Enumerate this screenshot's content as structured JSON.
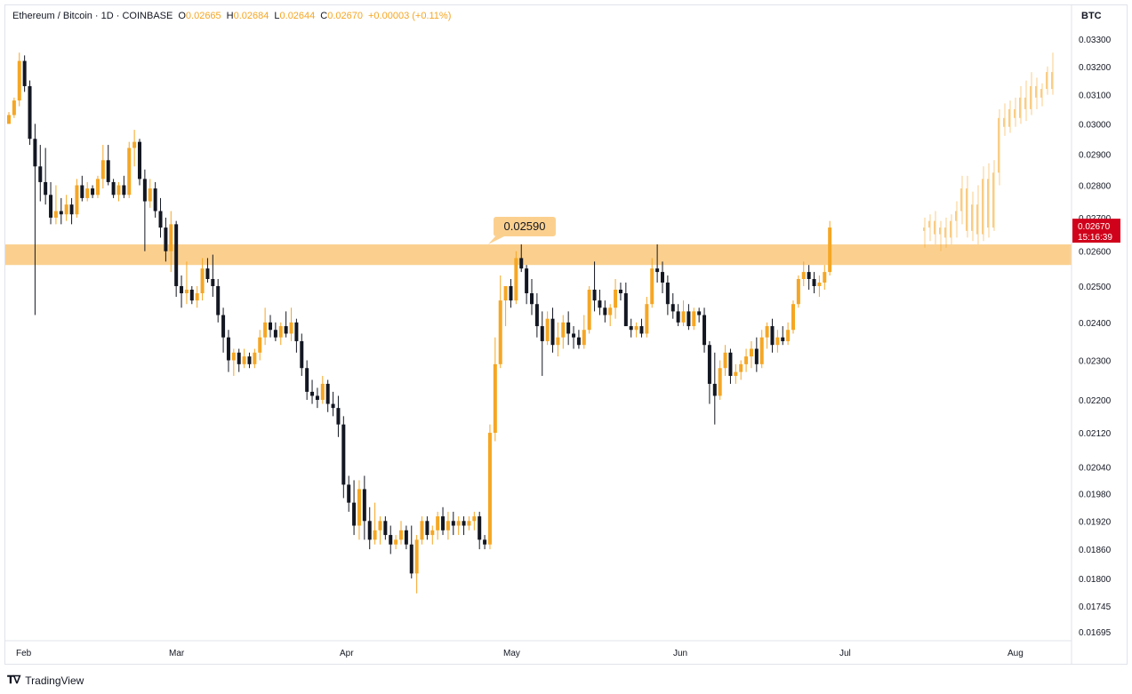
{
  "header": {
    "title": "Ethereum / Bitcoin · 1D · COINBASE",
    "open_label": "O",
    "open_value": "0.02665",
    "high_label": "H",
    "high_value": "0.02684",
    "low_label": "L",
    "low_value": "0.02644",
    "close_label": "C",
    "close_value": "0.02670",
    "change": "+0.00003 (+0.11%)"
  },
  "currency": "BTC",
  "footer": {
    "brand": "TradingView",
    "logo_icon": "tradingview-logo-icon"
  },
  "colors": {
    "up": "#f5a623",
    "down": "#131722",
    "zone": "#fbd08f",
    "price_tag": "#d0021b"
  },
  "chart_data": {
    "type": "candlestick",
    "y_scale": "log",
    "y_ticks": [
      "0.03300",
      "0.03200",
      "0.03100",
      "0.03000",
      "0.02900",
      "0.02800",
      "0.02700",
      "0.02600",
      "0.02500",
      "0.02400",
      "0.02300",
      "0.02200",
      "0.02120",
      "0.02040",
      "0.01980",
      "0.01920",
      "0.01860",
      "0.01800",
      "0.01745",
      "0.01695"
    ],
    "x_ticks": [
      "Feb",
      "Mar",
      "Apr",
      "May",
      "Jun",
      "Jul",
      "Aug"
    ],
    "zone": {
      "low": 0.0256,
      "high": 0.0262,
      "label": "0.02590"
    },
    "last_price": {
      "value": "0.02670",
      "countdown": "15:16:39"
    },
    "candles": [
      [
        0.03,
        0.0304,
        0.03,
        0.0303
      ],
      [
        0.0303,
        0.0309,
        0.0302,
        0.0308
      ],
      [
        0.0308,
        0.0325,
        0.0306,
        0.0322
      ],
      [
        0.0322,
        0.0324,
        0.0311,
        0.0313
      ],
      [
        0.0313,
        0.0315,
        0.0293,
        0.0295
      ],
      [
        0.0295,
        0.03,
        0.0242,
        0.0286
      ],
      [
        0.0286,
        0.0293,
        0.0275,
        0.0281
      ],
      [
        0.0281,
        0.0292,
        0.0274,
        0.0277
      ],
      [
        0.0277,
        0.0281,
        0.0268,
        0.027
      ],
      [
        0.027,
        0.028,
        0.0268,
        0.0272
      ],
      [
        0.0272,
        0.0276,
        0.0268,
        0.0271
      ],
      [
        0.0271,
        0.0277,
        0.0269,
        0.0274
      ],
      [
        0.0274,
        0.0276,
        0.0268,
        0.0271
      ],
      [
        0.0271,
        0.0282,
        0.027,
        0.028
      ],
      [
        0.028,
        0.0283,
        0.0275,
        0.0276
      ],
      [
        0.0276,
        0.0281,
        0.0275,
        0.0279
      ],
      [
        0.0279,
        0.028,
        0.0276,
        0.0277
      ],
      [
        0.0277,
        0.0283,
        0.0276,
        0.0282
      ],
      [
        0.0282,
        0.0293,
        0.0279,
        0.0288
      ],
      [
        0.0288,
        0.0293,
        0.028,
        0.0281
      ],
      [
        0.0281,
        0.0282,
        0.0276,
        0.0277
      ],
      [
        0.0277,
        0.0281,
        0.0275,
        0.028
      ],
      [
        0.028,
        0.0283,
        0.0276,
        0.0277
      ],
      [
        0.0277,
        0.0294,
        0.0276,
        0.0292
      ],
      [
        0.0292,
        0.0298,
        0.0286,
        0.0294
      ],
      [
        0.0294,
        0.0295,
        0.028,
        0.0282
      ],
      [
        0.0282,
        0.0285,
        0.026,
        0.0275
      ],
      [
        0.0275,
        0.0282,
        0.0273,
        0.0279
      ],
      [
        0.0279,
        0.0281,
        0.027,
        0.0272
      ],
      [
        0.0272,
        0.0276,
        0.0264,
        0.0267
      ],
      [
        0.0267,
        0.027,
        0.0257,
        0.026
      ],
      [
        0.026,
        0.0272,
        0.0254,
        0.0268
      ],
      [
        0.0268,
        0.0269,
        0.0247,
        0.025
      ],
      [
        0.025,
        0.0253,
        0.0244,
        0.0248
      ],
      [
        0.0248,
        0.0257,
        0.0245,
        0.0249
      ],
      [
        0.0249,
        0.025,
        0.0245,
        0.0246
      ],
      [
        0.0246,
        0.025,
        0.0244,
        0.0248
      ],
      [
        0.0248,
        0.0258,
        0.0246,
        0.0255
      ],
      [
        0.0255,
        0.0258,
        0.0251,
        0.0252
      ],
      [
        0.0252,
        0.0259,
        0.0247,
        0.025
      ],
      [
        0.025,
        0.0252,
        0.024,
        0.0242
      ],
      [
        0.0242,
        0.0244,
        0.0232,
        0.0236
      ],
      [
        0.0236,
        0.0238,
        0.0227,
        0.023
      ],
      [
        0.023,
        0.0233,
        0.0226,
        0.0232
      ],
      [
        0.0232,
        0.0233,
        0.0227,
        0.0229
      ],
      [
        0.0229,
        0.0233,
        0.0228,
        0.0231
      ],
      [
        0.0231,
        0.0232,
        0.0228,
        0.0229
      ],
      [
        0.0229,
        0.0233,
        0.0228,
        0.0232
      ],
      [
        0.0232,
        0.0238,
        0.023,
        0.0236
      ],
      [
        0.0236,
        0.0244,
        0.0234,
        0.024
      ],
      [
        0.024,
        0.0242,
        0.0236,
        0.0238
      ],
      [
        0.0238,
        0.024,
        0.0235,
        0.0236
      ],
      [
        0.0236,
        0.024,
        0.0234,
        0.0239
      ],
      [
        0.0239,
        0.0243,
        0.0236,
        0.0237
      ],
      [
        0.0237,
        0.0244,
        0.0235,
        0.024
      ],
      [
        0.024,
        0.0241,
        0.0232,
        0.0235
      ],
      [
        0.0235,
        0.0237,
        0.0226,
        0.0228
      ],
      [
        0.0228,
        0.023,
        0.022,
        0.0222
      ],
      [
        0.0222,
        0.0225,
        0.0219,
        0.0221
      ],
      [
        0.0221,
        0.0223,
        0.0218,
        0.022
      ],
      [
        0.022,
        0.0226,
        0.0219,
        0.0224
      ],
      [
        0.0224,
        0.0225,
        0.0217,
        0.0219
      ],
      [
        0.0219,
        0.0222,
        0.0216,
        0.0218
      ],
      [
        0.0218,
        0.0221,
        0.0211,
        0.0214
      ],
      [
        0.0214,
        0.0216,
        0.0197,
        0.02
      ],
      [
        0.02,
        0.0202,
        0.0194,
        0.0196
      ],
      [
        0.0196,
        0.0201,
        0.0189,
        0.0191
      ],
      [
        0.0191,
        0.0201,
        0.0188,
        0.0199
      ],
      [
        0.0199,
        0.0202,
        0.0188,
        0.0192
      ],
      [
        0.0192,
        0.0195,
        0.0186,
        0.0188
      ],
      [
        0.0188,
        0.0196,
        0.0187,
        0.019
      ],
      [
        0.019,
        0.0193,
        0.0187,
        0.0192
      ],
      [
        0.0192,
        0.0193,
        0.0188,
        0.0189
      ],
      [
        0.0189,
        0.0191,
        0.0185,
        0.0187
      ],
      [
        0.0187,
        0.0189,
        0.0186,
        0.0188
      ],
      [
        0.0188,
        0.0192,
        0.0187,
        0.019
      ],
      [
        0.019,
        0.0191,
        0.0186,
        0.0187
      ],
      [
        0.0187,
        0.0191,
        0.018,
        0.0181
      ],
      [
        0.0181,
        0.0189,
        0.0177,
        0.0188
      ],
      [
        0.0188,
        0.0193,
        0.0187,
        0.0192
      ],
      [
        0.0192,
        0.0193,
        0.0188,
        0.0189
      ],
      [
        0.0189,
        0.0191,
        0.0187,
        0.019
      ],
      [
        0.019,
        0.0194,
        0.0188,
        0.0193
      ],
      [
        0.0193,
        0.0195,
        0.0189,
        0.019
      ],
      [
        0.019,
        0.0194,
        0.0188,
        0.0192
      ],
      [
        0.0192,
        0.0194,
        0.0189,
        0.0191
      ],
      [
        0.0191,
        0.0193,
        0.0189,
        0.0192
      ],
      [
        0.0192,
        0.0193,
        0.0189,
        0.0191
      ],
      [
        0.0191,
        0.0193,
        0.019,
        0.0192
      ],
      [
        0.0192,
        0.0194,
        0.019,
        0.0193
      ],
      [
        0.0193,
        0.0194,
        0.0186,
        0.0188
      ],
      [
        0.0188,
        0.0189,
        0.0186,
        0.0187
      ],
      [
        0.0187,
        0.0214,
        0.0186,
        0.0212
      ],
      [
        0.0212,
        0.0236,
        0.021,
        0.0229
      ],
      [
        0.0229,
        0.0253,
        0.0228,
        0.0246
      ],
      [
        0.0246,
        0.025,
        0.0239,
        0.025
      ],
      [
        0.025,
        0.0252,
        0.0244,
        0.0246
      ],
      [
        0.0246,
        0.026,
        0.0245,
        0.0258
      ],
      [
        0.0258,
        0.0262,
        0.0254,
        0.0255
      ],
      [
        0.0255,
        0.0256,
        0.0245,
        0.0248
      ],
      [
        0.0248,
        0.0252,
        0.0242,
        0.0245
      ],
      [
        0.0245,
        0.0248,
        0.0236,
        0.0239
      ],
      [
        0.0239,
        0.0243,
        0.0226,
        0.0235
      ],
      [
        0.0235,
        0.0243,
        0.0234,
        0.0241
      ],
      [
        0.0241,
        0.0244,
        0.0232,
        0.0234
      ],
      [
        0.0234,
        0.024,
        0.0231,
        0.0236
      ],
      [
        0.0236,
        0.0242,
        0.0233,
        0.024
      ],
      [
        0.024,
        0.0243,
        0.0234,
        0.0237
      ],
      [
        0.0237,
        0.0239,
        0.0233,
        0.0236
      ],
      [
        0.0236,
        0.0238,
        0.0233,
        0.0234
      ],
      [
        0.0234,
        0.0242,
        0.0233,
        0.0238
      ],
      [
        0.0238,
        0.025,
        0.0237,
        0.0249
      ],
      [
        0.0249,
        0.0257,
        0.0243,
        0.0246
      ],
      [
        0.0246,
        0.0249,
        0.0242,
        0.0244
      ],
      [
        0.0244,
        0.0246,
        0.024,
        0.0242
      ],
      [
        0.0242,
        0.0245,
        0.0239,
        0.0244
      ],
      [
        0.0244,
        0.0252,
        0.0241,
        0.0249
      ],
      [
        0.0249,
        0.0251,
        0.0246,
        0.0248
      ],
      [
        0.0248,
        0.0251,
        0.024,
        0.0239
      ],
      [
        0.0239,
        0.0241,
        0.0236,
        0.0238
      ],
      [
        0.0238,
        0.024,
        0.0236,
        0.0239
      ],
      [
        0.0239,
        0.0241,
        0.0236,
        0.0237
      ],
      [
        0.0237,
        0.0247,
        0.0236,
        0.0245
      ],
      [
        0.0245,
        0.0258,
        0.0244,
        0.0255
      ],
      [
        0.0255,
        0.0262,
        0.0251,
        0.0254
      ],
      [
        0.0254,
        0.0257,
        0.0248,
        0.0251
      ],
      [
        0.0251,
        0.0253,
        0.0242,
        0.0245
      ],
      [
        0.0245,
        0.0248,
        0.0241,
        0.0243
      ],
      [
        0.0243,
        0.0245,
        0.0239,
        0.024
      ],
      [
        0.024,
        0.0246,
        0.0239,
        0.0243
      ],
      [
        0.0243,
        0.0245,
        0.0238,
        0.0239
      ],
      [
        0.0239,
        0.0244,
        0.0238,
        0.0243
      ],
      [
        0.0243,
        0.0244,
        0.024,
        0.0242
      ],
      [
        0.0242,
        0.0244,
        0.0232,
        0.0234
      ],
      [
        0.0234,
        0.0235,
        0.0219,
        0.0224
      ],
      [
        0.0224,
        0.0232,
        0.0214,
        0.0221
      ],
      [
        0.0221,
        0.023,
        0.022,
        0.0228
      ],
      [
        0.0228,
        0.0234,
        0.0226,
        0.0232
      ],
      [
        0.0232,
        0.0233,
        0.0224,
        0.0226
      ],
      [
        0.0226,
        0.0229,
        0.0224,
        0.0227
      ],
      [
        0.0227,
        0.023,
        0.0225,
        0.0229
      ],
      [
        0.0229,
        0.0233,
        0.0227,
        0.0231
      ],
      [
        0.0231,
        0.0235,
        0.0228,
        0.0233
      ],
      [
        0.0233,
        0.0236,
        0.0227,
        0.0229
      ],
      [
        0.0229,
        0.0238,
        0.0228,
        0.0236
      ],
      [
        0.0236,
        0.024,
        0.0233,
        0.0239
      ],
      [
        0.0239,
        0.0241,
        0.0232,
        0.0234
      ],
      [
        0.0234,
        0.0238,
        0.0232,
        0.0236
      ],
      [
        0.0236,
        0.0239,
        0.0234,
        0.0235
      ],
      [
        0.0235,
        0.024,
        0.0234,
        0.0238
      ],
      [
        0.0238,
        0.0246,
        0.0237,
        0.0245
      ],
      [
        0.0245,
        0.0253,
        0.0244,
        0.0252
      ],
      [
        0.0252,
        0.0257,
        0.025,
        0.0254
      ],
      [
        0.0254,
        0.0256,
        0.0249,
        0.0252
      ],
      [
        0.0252,
        0.0254,
        0.0248,
        0.025
      ],
      [
        0.025,
        0.0253,
        0.0247,
        0.0251
      ],
      [
        0.0251,
        0.0256,
        0.0249,
        0.0254
      ],
      [
        0.0254,
        0.0269,
        0.0253,
        0.0267
      ]
    ],
    "projection": [
      [
        0.0266,
        0.027,
        0.0261,
        0.0267
      ],
      [
        0.0267,
        0.0271,
        0.0263,
        0.0269
      ],
      [
        0.0269,
        0.0272,
        0.0262,
        0.0265
      ],
      [
        0.0265,
        0.0269,
        0.026,
        0.0267
      ],
      [
        0.0267,
        0.027,
        0.0261,
        0.0264
      ],
      [
        0.0264,
        0.0271,
        0.0262,
        0.0269
      ],
      [
        0.0269,
        0.0275,
        0.0264,
        0.0272
      ],
      [
        0.0272,
        0.0283,
        0.0268,
        0.0279
      ],
      [
        0.0279,
        0.0283,
        0.0264,
        0.0266
      ],
      [
        0.0266,
        0.0278,
        0.0263,
        0.0274
      ],
      [
        0.0274,
        0.028,
        0.0262,
        0.0265
      ],
      [
        0.0265,
        0.0286,
        0.0263,
        0.0282
      ],
      [
        0.0282,
        0.0287,
        0.0264,
        0.0267
      ],
      [
        0.0267,
        0.0288,
        0.0266,
        0.0284
      ],
      [
        0.0284,
        0.0305,
        0.028,
        0.0302
      ],
      [
        0.0302,
        0.0307,
        0.0296,
        0.0299
      ],
      [
        0.0299,
        0.0308,
        0.0297,
        0.0305
      ],
      [
        0.0305,
        0.0309,
        0.0299,
        0.0302
      ],
      [
        0.0302,
        0.0313,
        0.03,
        0.0309
      ],
      [
        0.0309,
        0.0315,
        0.0301,
        0.0305
      ],
      [
        0.0305,
        0.0318,
        0.0303,
        0.0313
      ],
      [
        0.0313,
        0.0316,
        0.0305,
        0.0309
      ],
      [
        0.0309,
        0.0314,
        0.0306,
        0.0312
      ],
      [
        0.0312,
        0.032,
        0.031,
        0.0318
      ],
      [
        0.0318,
        0.0325,
        0.031,
        0.0312
      ]
    ]
  }
}
